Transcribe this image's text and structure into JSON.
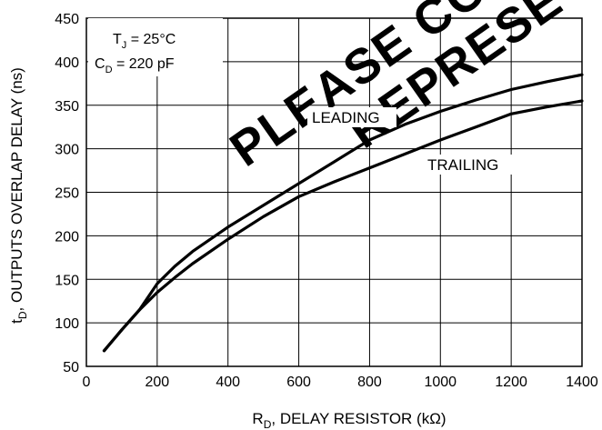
{
  "chart_data": {
    "type": "line",
    "x_axis": {
      "label_main": "R",
      "label_sub": "D",
      "label_rest": ", DELAY RESISTOR (kΩ)",
      "min": 0,
      "max": 1400,
      "ticks": [
        0,
        200,
        400,
        600,
        800,
        1000,
        1200,
        1400
      ],
      "grid": true
    },
    "y_axis": {
      "label_main": "t",
      "label_sub": "D",
      "label_rest": ", OUTPUTS OVERLAP DELAY (ns)",
      "min": 50,
      "max": 450,
      "ticks": [
        50,
        100,
        150,
        200,
        250,
        300,
        350,
        400,
        450
      ],
      "grid": true
    },
    "series": [
      {
        "name": "LEADING",
        "x": [
          50,
          100,
          150,
          200,
          250,
          300,
          400,
          500,
          600,
          700,
          800,
          900,
          1000,
          1100,
          1200,
          1300,
          1400
        ],
        "y": [
          68,
          92,
          115,
          145,
          165,
          182,
          210,
          235,
          260,
          285,
          310,
          328,
          343,
          356,
          368,
          377,
          385
        ]
      },
      {
        "name": "TRAILING",
        "x": [
          50,
          100,
          150,
          200,
          250,
          300,
          400,
          500,
          600,
          700,
          800,
          900,
          1000,
          1100,
          1200,
          1300,
          1400
        ],
        "y": [
          68,
          92,
          115,
          135,
          152,
          168,
          196,
          222,
          245,
          262,
          278,
          294,
          310,
          325,
          340,
          348,
          355
        ]
      }
    ],
    "annotations": {
      "tj_main": "T",
      "tj_sub": "J",
      "tj_rest": " = 25°C",
      "cd_main": "C",
      "cd_sub": "D",
      "cd_rest": " = 220 pF"
    },
    "watermark": {
      "line1": "PLEASE CO",
      "line2": "REPRESE"
    }
  }
}
